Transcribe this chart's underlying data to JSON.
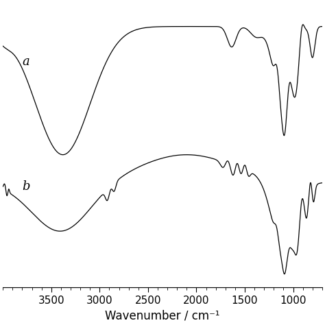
{
  "title": "",
  "xlabel": "Wavenumber / cm⁻¹",
  "ylabel": "",
  "xlim": [
    4000,
    700
  ],
  "background_color": "#ffffff",
  "line_color": "#000000",
  "label_a": "a",
  "label_b": "b",
  "x_ticks": [
    3500,
    3000,
    2500,
    2000,
    1500,
    1000
  ],
  "xlabel_fontsize": 12,
  "tick_fontsize": 11
}
